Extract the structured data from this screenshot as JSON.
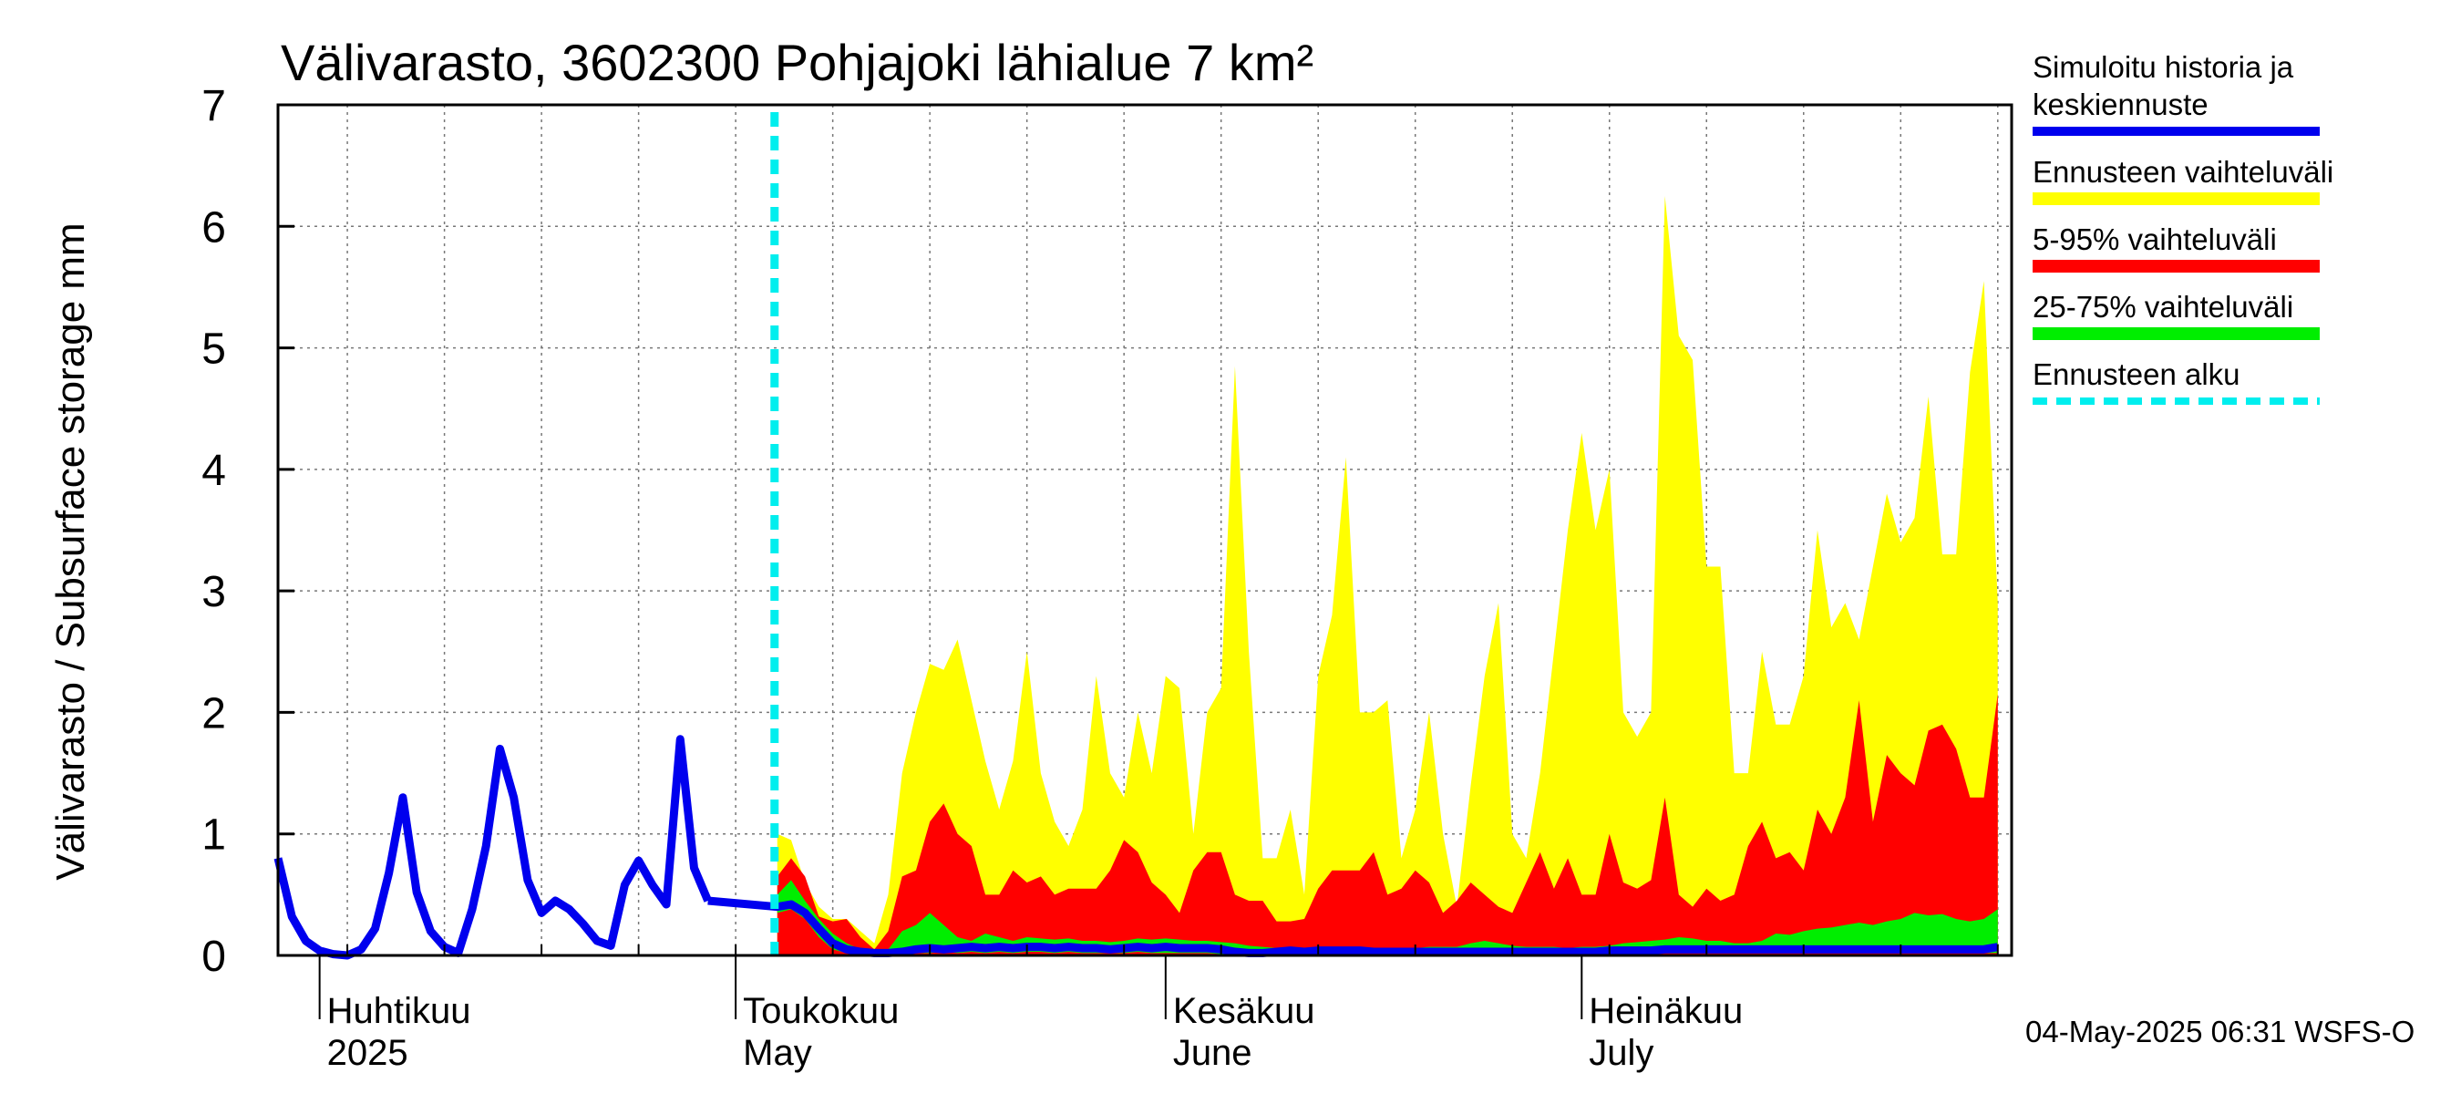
{
  "chart_data": {
    "type": "area",
    "title": "Välivarasto, 3602300 Pohjajoki lähialue 7 km²",
    "ylabel": "Välivarasto / Subsurface storage  mm",
    "xlabel": "",
    "ylim": [
      0,
      7
    ],
    "yticks": [
      "0",
      "1",
      "2",
      "3",
      "4",
      "5",
      "6",
      "7"
    ],
    "x_start": "2025-03-29",
    "x_end": "2025-08-01",
    "forecast_start": "2025-05-04",
    "months": [
      {
        "date": "2025-04-01",
        "fi": "Huhtikuu",
        "en": "2025"
      },
      {
        "date": "2025-05-01",
        "fi": "Toukokuu",
        "en": "May"
      },
      {
        "date": "2025-06-01",
        "fi": "Kesäkuu",
        "en": "June"
      },
      {
        "date": "2025-07-01",
        "fi": "Heinäkuu",
        "en": "July"
      }
    ],
    "history": {
      "name": "Simuloitu historia ja keskiennuste",
      "start": "2025-03-29",
      "values": [
        0.8,
        0.32,
        0.12,
        0.04,
        0.01,
        0.0,
        0.05,
        0.22,
        0.68,
        1.3,
        0.52,
        0.2,
        0.07,
        0.02,
        0.38,
        0.9,
        1.7,
        1.3,
        0.62,
        0.35,
        0.45,
        0.38,
        0.26,
        0.12,
        0.08,
        0.58,
        0.78,
        0.58,
        0.42,
        1.78,
        0.72,
        0.45
      ]
    },
    "forecast": {
      "start": "2025-05-04",
      "median": [
        0.4,
        0.42,
        0.35,
        0.22,
        0.1,
        0.05,
        0.03,
        0.02,
        0.02,
        0.03,
        0.05,
        0.06,
        0.05,
        0.06,
        0.07,
        0.06,
        0.07,
        0.06,
        0.07,
        0.07,
        0.06,
        0.07,
        0.06,
        0.06,
        0.05,
        0.06,
        0.07,
        0.06,
        0.07,
        0.06,
        0.06,
        0.06,
        0.05,
        0.03,
        0.02,
        0.02,
        0.03,
        0.04,
        0.03,
        0.04,
        0.04,
        0.04,
        0.04,
        0.03,
        0.03,
        0.03,
        0.03,
        0.03,
        0.03,
        0.03,
        0.03,
        0.03,
        0.03,
        0.03,
        0.03,
        0.03,
        0.03,
        0.03,
        0.03,
        0.03,
        0.04,
        0.04,
        0.04,
        0.04,
        0.05,
        0.05,
        0.05,
        0.05,
        0.05,
        0.05,
        0.05,
        0.05,
        0.05,
        0.05,
        0.05,
        0.05,
        0.05,
        0.05,
        0.05,
        0.05,
        0.05,
        0.05,
        0.05,
        0.05,
        0.05,
        0.05,
        0.05,
        0.05,
        0.07
      ],
      "p25": [
        0.35,
        0.38,
        0.3,
        0.15,
        0.05,
        0.02,
        0.01,
        0.01,
        0.01,
        0.01,
        0.02,
        0.02,
        0.03,
        0.02,
        0.03,
        0.02,
        0.03,
        0.02,
        0.03,
        0.03,
        0.02,
        0.03,
        0.02,
        0.02,
        0.02,
        0.02,
        0.03,
        0.02,
        0.02,
        0.02,
        0.02,
        0.02,
        0.01,
        0.01,
        0.01,
        0.01,
        0.01,
        0.01,
        0.01,
        0.01,
        0.01,
        0.01,
        0.01,
        0.01,
        0.01,
        0.01,
        0.01,
        0.01,
        0.01,
        0.01,
        0.01,
        0.01,
        0.01,
        0.01,
        0.01,
        0.01,
        0.01,
        0.01,
        0.01,
        0.01,
        0.01,
        0.01,
        0.01,
        0.01,
        0.02,
        0.02,
        0.02,
        0.02,
        0.02,
        0.02,
        0.02,
        0.02,
        0.02,
        0.02,
        0.02,
        0.02,
        0.02,
        0.02,
        0.02,
        0.02,
        0.02,
        0.02,
        0.02,
        0.02,
        0.02,
        0.02,
        0.02,
        0.02,
        0.02
      ],
      "p75": [
        0.5,
        0.62,
        0.45,
        0.3,
        0.18,
        0.1,
        0.05,
        0.05,
        0.05,
        0.2,
        0.25,
        0.35,
        0.25,
        0.15,
        0.12,
        0.18,
        0.15,
        0.12,
        0.15,
        0.14,
        0.13,
        0.14,
        0.12,
        0.12,
        0.11,
        0.12,
        0.14,
        0.13,
        0.14,
        0.13,
        0.12,
        0.12,
        0.11,
        0.1,
        0.08,
        0.07,
        0.06,
        0.06,
        0.06,
        0.06,
        0.05,
        0.05,
        0.05,
        0.05,
        0.05,
        0.06,
        0.06,
        0.07,
        0.07,
        0.07,
        0.1,
        0.12,
        0.1,
        0.08,
        0.07,
        0.07,
        0.07,
        0.06,
        0.07,
        0.07,
        0.08,
        0.1,
        0.11,
        0.12,
        0.13,
        0.15,
        0.14,
        0.12,
        0.12,
        0.1,
        0.1,
        0.12,
        0.18,
        0.17,
        0.2,
        0.22,
        0.23,
        0.25,
        0.27,
        0.25,
        0.28,
        0.3,
        0.35,
        0.33,
        0.34,
        0.3,
        0.28,
        0.3,
        0.38
      ],
      "p95": [
        0.65,
        0.8,
        0.65,
        0.32,
        0.28,
        0.3,
        0.15,
        0.05,
        0.2,
        0.65,
        0.7,
        1.1,
        1.25,
        1.0,
        0.9,
        0.5,
        0.5,
        0.7,
        0.6,
        0.65,
        0.5,
        0.55,
        0.55,
        0.55,
        0.7,
        0.95,
        0.85,
        0.6,
        0.5,
        0.35,
        0.7,
        0.85,
        0.85,
        0.5,
        0.45,
        0.45,
        0.28,
        0.28,
        0.3,
        0.55,
        0.7,
        0.7,
        0.7,
        0.85,
        0.5,
        0.55,
        0.7,
        0.6,
        0.35,
        0.45,
        0.6,
        0.5,
        0.4,
        0.35,
        0.6,
        0.85,
        0.55,
        0.8,
        0.5,
        0.5,
        1.0,
        0.6,
        0.55,
        0.62,
        1.3,
        0.5,
        0.4,
        0.55,
        0.45,
        0.5,
        0.9,
        1.1,
        0.8,
        0.85,
        0.7,
        1.2,
        1.0,
        1.3,
        2.1,
        1.1,
        1.65,
        1.5,
        1.4,
        1.85,
        1.9,
        1.7,
        1.3,
        1.3,
        2.15
      ],
      "max": [
        1.0,
        0.95,
        0.6,
        0.4,
        0.3,
        0.3,
        0.2,
        0.1,
        0.5,
        1.5,
        2.0,
        2.4,
        2.35,
        2.6,
        2.1,
        1.6,
        1.2,
        1.6,
        2.5,
        1.5,
        1.1,
        0.9,
        1.2,
        2.3,
        1.5,
        1.3,
        2.0,
        1.5,
        2.3,
        2.2,
        1.0,
        2.0,
        2.2,
        4.85,
        2.5,
        0.8,
        0.8,
        1.2,
        0.5,
        2.3,
        2.8,
        4.1,
        2.0,
        2.0,
        2.1,
        0.8,
        1.2,
        2.0,
        1.0,
        0.4,
        1.4,
        2.3,
        2.9,
        1.0,
        0.8,
        1.5,
        2.5,
        3.5,
        4.3,
        3.5,
        4.0,
        2.0,
        1.8,
        2.0,
        6.25,
        5.1,
        4.9,
        3.2,
        3.2,
        1.5,
        1.5,
        2.5,
        1.9,
        1.9,
        2.3,
        3.5,
        2.7,
        2.9,
        2.6,
        3.2,
        3.8,
        3.4,
        3.6,
        4.6,
        3.3,
        3.3,
        4.8,
        5.55,
        2.9
      ]
    },
    "legend": [
      {
        "label_line1": "Simuloitu historia ja",
        "label_line2": "keskiennuste",
        "color": "#0000ee",
        "style": "line"
      },
      {
        "label_line1": "Ennusteen vaihteluväli",
        "color": "#ffff00",
        "style": "band"
      },
      {
        "label_line1": "5-95% vaihteluväli",
        "color": "#ff0000",
        "style": "band"
      },
      {
        "label_line1": "25-75% vaihteluväli",
        "color": "#00ee00",
        "style": "band"
      },
      {
        "label_line1": "Ennusteen alku",
        "color": "#00eeee",
        "style": "dashed"
      }
    ],
    "footer": "04-May-2025 06:31 WSFS-O"
  }
}
